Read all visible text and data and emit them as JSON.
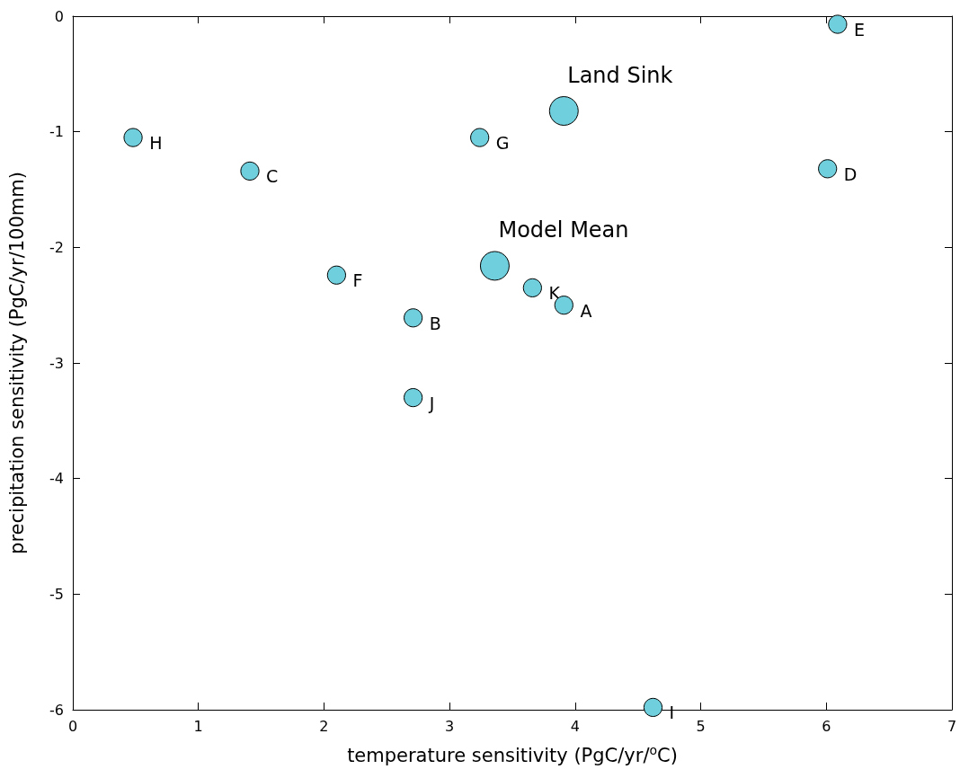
{
  "chart_data": {
    "type": "bubble",
    "xlabel": "temperature sensitivity (PgC/yr/$^{o}$C)",
    "ylabel": "precipitation sensitivity (PgC/yr/100mm)",
    "xlim": [
      0,
      7
    ],
    "xticks": [
      0,
      1,
      2,
      3,
      4,
      5,
      6,
      7
    ],
    "ylim": [
      -6,
      0
    ],
    "yticks": [
      -6,
      -5,
      -4,
      -3,
      -2,
      -1,
      0
    ],
    "grid": false,
    "marker": "circle",
    "series": [
      {
        "color": "#6fcfdc",
        "x": [
          6.09,
          3.91,
          0.48,
          3.24,
          1.41,
          6.01,
          3.36,
          2.1,
          3.66,
          3.91,
          2.71,
          2.71,
          4.62
        ],
        "values": [
          -0.07,
          -0.82,
          -1.05,
          -1.05,
          -1.34,
          -1.32,
          -2.16,
          -2.24,
          -2.35,
          -2.5,
          -2.61,
          -3.3,
          -5.98
        ],
        "sizes": [
          0.4,
          1,
          0.4,
          0.4,
          0.4,
          0.4,
          1,
          0.4,
          0.4,
          0.4,
          0.4,
          0.4,
          0.4
        ]
      }
    ],
    "annotations": [
      {
        "text": "E",
        "x": 6.09,
        "y": -0.07
      },
      {
        "text": "Land Sink",
        "x": 3.91,
        "y": -0.82
      },
      {
        "text": "H",
        "x": 0.48,
        "y": -1.05
      },
      {
        "text": "G",
        "x": 3.24,
        "y": -1.05
      },
      {
        "text": "C",
        "x": 1.41,
        "y": -1.34
      },
      {
        "text": "D",
        "x": 6.01,
        "y": -1.32
      },
      {
        "text": "Model Mean",
        "x": 3.36,
        "y": -2.16
      },
      {
        "text": "F",
        "x": 2.1,
        "y": -2.24
      },
      {
        "text": "K",
        "x": 3.66,
        "y": -2.35
      },
      {
        "text": "A",
        "x": 3.91,
        "y": -2.5
      },
      {
        "text": "B",
        "x": 2.71,
        "y": -2.61
      },
      {
        "text": "J",
        "x": 2.71,
        "y": -3.3
      },
      {
        "text": "I",
        "x": 4.62,
        "y": -5.98
      }
    ]
  }
}
